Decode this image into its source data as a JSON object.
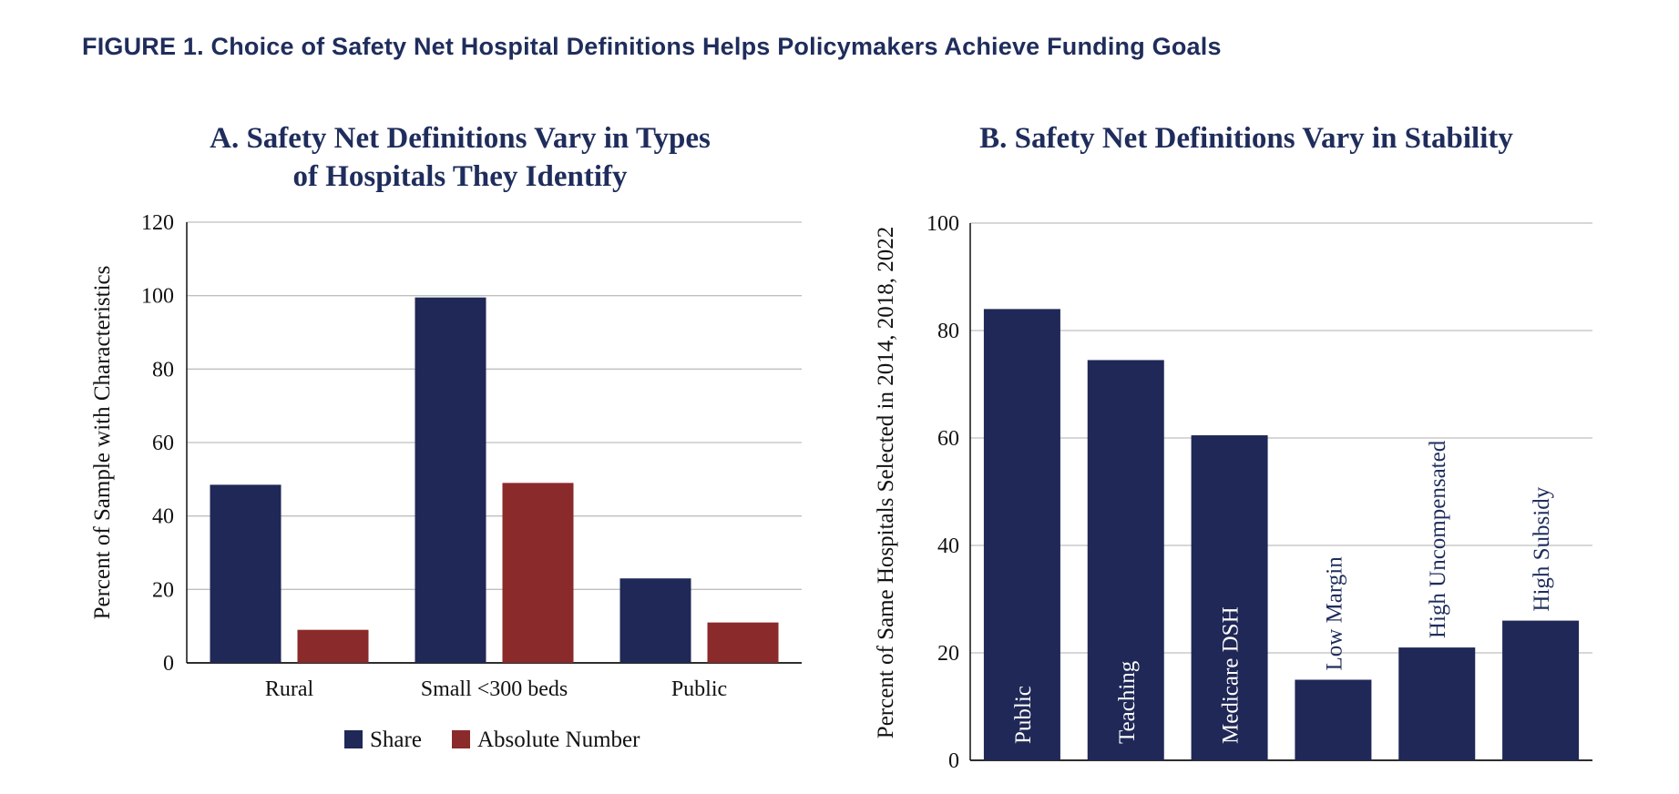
{
  "figure_title": "FIGURE 1. Choice of Safety Net Hospital Definitions Helps Policymakers Achieve Funding Goals",
  "colors": {
    "navy": "#1f2856",
    "red": "#8b2a2a",
    "title": "#1f2d5c",
    "grid": "#bfbfbf"
  },
  "chart_data": [
    {
      "type": "bar",
      "title_lines": [
        "A. Safety Net Definitions Vary in Types",
        "of Hospitals They Identify"
      ],
      "ylabel": "Percent of Sample with Characteristics",
      "xlabel": "",
      "ylim": [
        0,
        120
      ],
      "yticks": [
        0,
        20,
        40,
        60,
        80,
        100,
        120
      ],
      "grid": true,
      "legend_position": "bottom-center",
      "categories": [
        "Rural",
        "Small <300 beds",
        "Public"
      ],
      "series": [
        {
          "name": "Share",
          "color": "#1f2856",
          "values": [
            48.5,
            99.5,
            23
          ]
        },
        {
          "name": "Absolute Number",
          "color": "#8b2a2a",
          "values": [
            9,
            49,
            11
          ]
        }
      ]
    },
    {
      "type": "bar",
      "title": "B. Safety Net Definitions Vary in Stability",
      "ylabel": "Percent of Same Hospitals Selected in 2014, 2018, 2022",
      "xlabel": "",
      "ylim": [
        0,
        100
      ],
      "yticks": [
        0,
        20,
        40,
        60,
        80,
        100
      ],
      "grid": true,
      "categories": [
        "Public",
        "Teaching",
        "Medicare DSH",
        "Low Margin",
        "High Uncompensated",
        "High Subsidy"
      ],
      "values": [
        84,
        74.5,
        60.5,
        15,
        21,
        26
      ],
      "color": "#1f2856"
    }
  ]
}
